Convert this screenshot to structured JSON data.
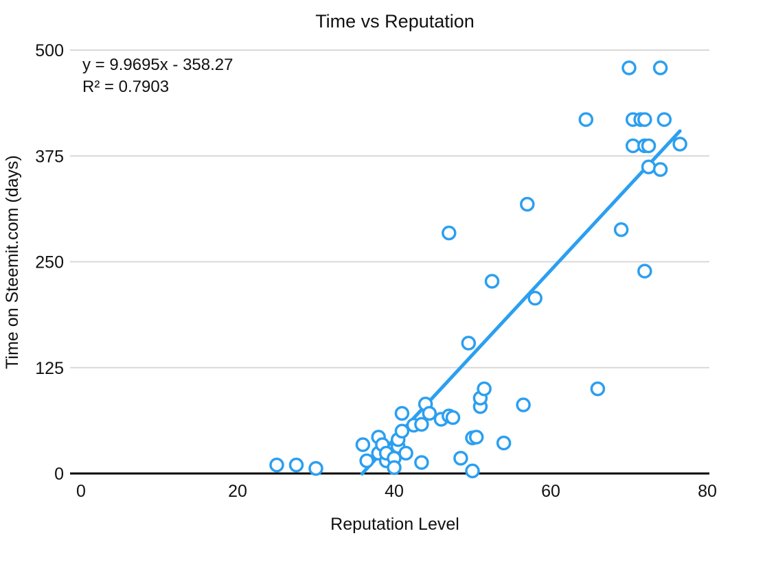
{
  "chart_data": {
    "type": "scatter",
    "title": "Time vs Reputation",
    "xlabel": "Reputation Level",
    "ylabel": "Time on Steemit.com (days)",
    "xlim": [
      0,
      80
    ],
    "ylim": [
      0,
      500
    ],
    "x_tick_values": [
      0,
      20,
      40,
      60,
      80
    ],
    "x_ticks": [
      "0",
      "20",
      "40",
      "60",
      "80"
    ],
    "y_tick_values": [
      0,
      125,
      250,
      375,
      500
    ],
    "y_ticks": [
      "0",
      "125",
      "250",
      "375",
      "500"
    ],
    "grid": "horizontal",
    "legend": "none",
    "annotation": {
      "equation": "y = 9.9695x - 358.27",
      "r_squared": "R² = 0.7903"
    },
    "trendline": {
      "slope": 9.9695,
      "intercept": -358.27,
      "x_start": 35.9,
      "x_end": 76.5
    },
    "series": [
      {
        "name": "Time on Steemit.com (days)",
        "points": [
          [
            25,
            10
          ],
          [
            27.5,
            10
          ],
          [
            30,
            6
          ],
          [
            36,
            34
          ],
          [
            36.5,
            15
          ],
          [
            38,
            24
          ],
          [
            38,
            43
          ],
          [
            38.5,
            34
          ],
          [
            39,
            15
          ],
          [
            39,
            24
          ],
          [
            40,
            18
          ],
          [
            40,
            7
          ],
          [
            40.5,
            32
          ],
          [
            40.5,
            40
          ],
          [
            41,
            50
          ],
          [
            41,
            71
          ],
          [
            41.5,
            24
          ],
          [
            42.5,
            57
          ],
          [
            43.5,
            58
          ],
          [
            43.5,
            13
          ],
          [
            44,
            82
          ],
          [
            44.5,
            71
          ],
          [
            46,
            64
          ],
          [
            47,
            68
          ],
          [
            47,
            284
          ],
          [
            47.5,
            66
          ],
          [
            48.5,
            18
          ],
          [
            49.5,
            154
          ],
          [
            50,
            3
          ],
          [
            50,
            42
          ],
          [
            50.5,
            43
          ],
          [
            51,
            79
          ],
          [
            51,
            89
          ],
          [
            51.5,
            100
          ],
          [
            52.5,
            227
          ],
          [
            54,
            36
          ],
          [
            56.5,
            81
          ],
          [
            57,
            318
          ],
          [
            58,
            207
          ],
          [
            64.5,
            418
          ],
          [
            66,
            100
          ],
          [
            69,
            288
          ],
          [
            70,
            479
          ],
          [
            70.5,
            418
          ],
          [
            70.5,
            387
          ],
          [
            71.5,
            418
          ],
          [
            72,
            418
          ],
          [
            72,
            387
          ],
          [
            72.5,
            387
          ],
          [
            72,
            239
          ],
          [
            72.5,
            362
          ],
          [
            74,
            479
          ],
          [
            74,
            359
          ],
          [
            74.5,
            418
          ],
          [
            76.5,
            389
          ]
        ]
      }
    ],
    "style": {
      "point_color": "#2b9ff0",
      "point_fill": "#ffffff",
      "trendline_color": "#2b9ff0",
      "grid_color": "#d8d8d8",
      "axis_color": "#000000",
      "text_color": "#111111"
    }
  }
}
